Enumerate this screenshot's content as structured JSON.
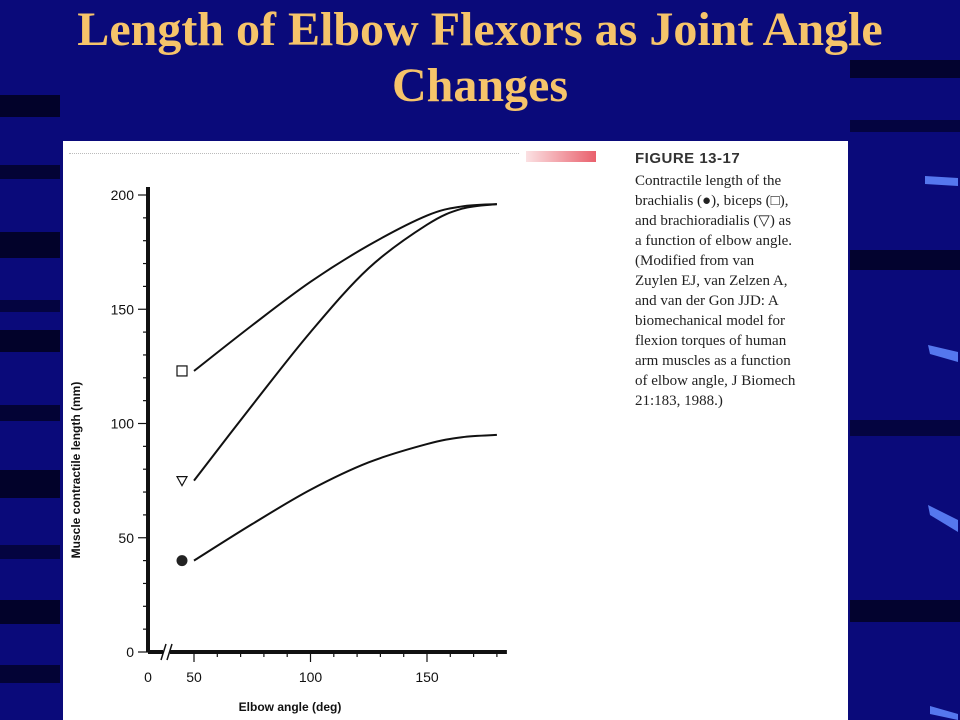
{
  "slide": {
    "title": "Length of Elbow Flexors as Joint Angle Changes"
  },
  "figure": {
    "label": "FIGURE 13-17",
    "caption": "Contractile length of the\nbrachialis (●), biceps (□),\nand brachioradialis (▽) as\na function of elbow angle.\n(Modified from van\nZuylen EJ, van Zelzen A,\nand van der Gon JJD: A\nbiomechanical model for\nflexion torques of human\narm muscles as a function\nof elbow angle, J Biomech\n21:183, 1988.)"
  },
  "colors": {
    "background": "#0a0a7a",
    "title": "#f6c46a",
    "accent_bar": "#e9606c"
  },
  "chart_data": {
    "type": "line",
    "title": "",
    "xlabel": "Elbow angle (deg)",
    "ylabel": "Muscle contractile length (mm)",
    "xlim": [
      0,
      180
    ],
    "ylim": [
      0,
      200
    ],
    "axis_break": true,
    "x_ticks": [
      0,
      50,
      100,
      150
    ],
    "y_ticks": [
      0,
      50,
      100,
      150,
      200
    ],
    "grid": false,
    "legend": "none",
    "series": [
      {
        "marker": "square-open",
        "x": [
          50,
          75,
          100,
          125,
          150,
          165,
          180
        ],
        "y": [
          123,
          143,
          162,
          178,
          191,
          195,
          196
        ]
      },
      {
        "marker": "triangle-open",
        "x": [
          50,
          75,
          100,
          125,
          150,
          165,
          180
        ],
        "y": [
          75,
          108,
          140,
          168,
          187,
          194,
          196
        ]
      },
      {
        "marker": "circle-filled",
        "x": [
          50,
          75,
          100,
          125,
          150,
          165,
          180
        ],
        "y": [
          40,
          56,
          71,
          83,
          91,
          94,
          95
        ]
      }
    ]
  }
}
